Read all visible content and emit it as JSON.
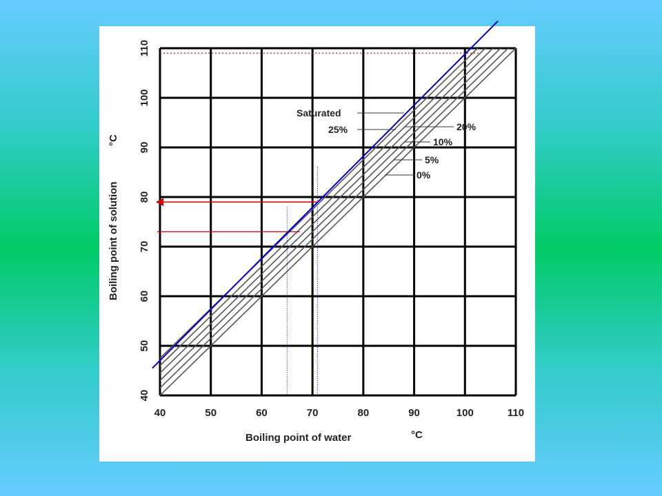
{
  "colors": {
    "background_gradient": [
      "#66ccff",
      "#00cc66",
      "#66ccff"
    ],
    "panel": "#ffffff",
    "grid": "#000000",
    "curves": "#555555",
    "highlight_line": "#0000cc",
    "annotation": "#cc0000",
    "guide_dotted": "#000066"
  },
  "chart_data": {
    "type": "line",
    "xlabel": "Boiling point of water",
    "xunit": "°C",
    "ylabel": "Boiling point of solution",
    "yunit": "°C",
    "xlim": [
      40,
      110
    ],
    "ylim": [
      40,
      110
    ],
    "xticks": [
      "40",
      "50",
      "60",
      "70",
      "80",
      "90",
      "100",
      "110"
    ],
    "yticks": [
      "40",
      "50",
      "60",
      "70",
      "80",
      "90",
      "100",
      "110"
    ],
    "grid": true,
    "series": [
      {
        "name": "0%",
        "x": [
          40,
          110
        ],
        "y": [
          40,
          110
        ]
      },
      {
        "name": "5%",
        "x": [
          40,
          110
        ],
        "y": [
          41.5,
          111.5
        ]
      },
      {
        "name": "10%",
        "x": [
          40,
          110
        ],
        "y": [
          43,
          113
        ]
      },
      {
        "name": "20%",
        "x": [
          40,
          110
        ],
        "y": [
          44.5,
          114.5
        ]
      },
      {
        "name": "25%",
        "x": [
          40,
          110
        ],
        "y": [
          46,
          116
        ]
      },
      {
        "name": "Saturated",
        "x": [
          40,
          110
        ],
        "y": [
          47.5,
          117.5
        ]
      }
    ],
    "highlight_line": {
      "x": [
        38.5,
        106.5
      ],
      "y": [
        45.5,
        115.5
      ]
    },
    "annotations": {
      "arrow_from_x": 71,
      "arrow_to_y": 79,
      "second_read_x": 65,
      "second_read_y": 73,
      "top_dotted_y": 109
    }
  }
}
